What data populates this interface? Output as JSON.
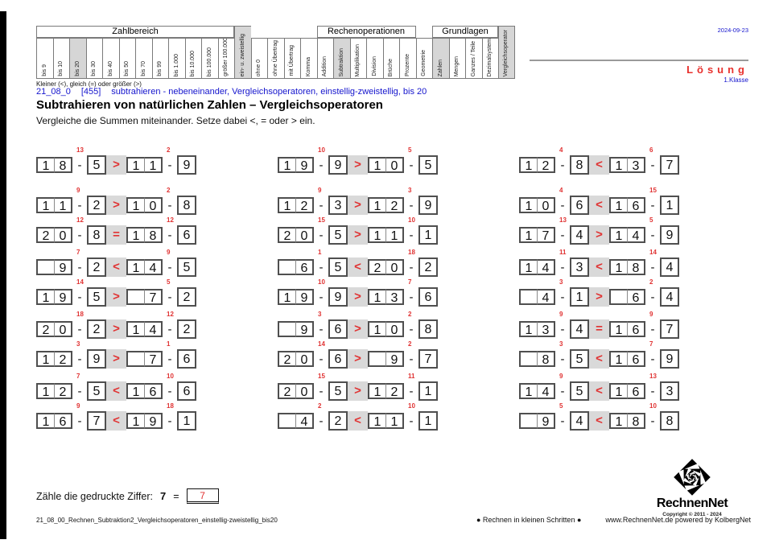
{
  "meta": {
    "date": "2024-09-23",
    "solution": "Lösung",
    "grade": "1.Klasse"
  },
  "legend": "Kleiner (<), gleich (=) oder größer (>)",
  "header_table": {
    "groups": [
      {
        "label": "Zahlbereich",
        "start": 1,
        "span": 12
      },
      {
        "label": "Rechenoperationen",
        "start": 18,
        "span": 6
      },
      {
        "label": "Grundlagen",
        "start": 25,
        "span": 4
      }
    ],
    "columns": [
      {
        "label": "bis 9"
      },
      {
        "label": "bis 10"
      },
      {
        "label": "bis 20",
        "hl": true
      },
      {
        "label": "bis 30"
      },
      {
        "label": "bis 40"
      },
      {
        "label": "bis 50"
      },
      {
        "label": "bis 70"
      },
      {
        "label": "bis 99"
      },
      {
        "label": "bis 1.000"
      },
      {
        "label": "bis 10.000"
      },
      {
        "label": "bis 100.000"
      },
      {
        "label": "größer 100.000"
      },
      {
        "label": "ein- u. zweistellig",
        "hl": true,
        "tall": true
      },
      {
        "label": "ohne 0"
      },
      {
        "label": "ohne Übertrag"
      },
      {
        "label": "mit Übertrag"
      },
      {
        "label": "Komma"
      },
      {
        "label": "Addition"
      },
      {
        "label": "Subtraktion",
        "hl": true
      },
      {
        "label": "Multiplikation"
      },
      {
        "label": "Division"
      },
      {
        "label": "Brüche"
      },
      {
        "label": "Prozente"
      },
      {
        "label": "Geometrie"
      },
      {
        "label": "Zahlen",
        "hl": true
      },
      {
        "label": "Mengen"
      },
      {
        "label": "Ganzes / Teile"
      },
      {
        "label": "Dezimalsystem"
      },
      {
        "label": "Vergleichsoperator",
        "hl": true,
        "tall": true
      }
    ]
  },
  "title_block": {
    "code": "21_08_0",
    "number": "[455]",
    "subtitle": "subtrahieren - nebeneinander, Vergleichsoperatoren, einstellig-zweistellig, bis 20",
    "title": "Subtrahieren von natürlichen Zahlen – Vergleichsoperatoren",
    "instruction": "Vergleiche die Summen miteinander. Setze dabei <, = oder > ein."
  },
  "problems": {
    "minus": "-",
    "rows": [
      {
        "group": 1,
        "cells": [
          {
            "a": "18",
            "b": "5",
            "op": ">",
            "c": "11",
            "d": "9",
            "ra": "13",
            "rc": "2"
          },
          {
            "a": "19",
            "b": "9",
            "op": ">",
            "c": "10",
            "d": "5",
            "ra": "10",
            "rc": "5"
          },
          {
            "a": "12",
            "b": "8",
            "op": "<",
            "c": "13",
            "d": "7",
            "ra": "4",
            "rc": "6"
          }
        ]
      },
      {
        "group": 2,
        "cells": [
          {
            "a": "11",
            "b": "2",
            "op": ">",
            "c": "10",
            "d": "8",
            "ra": "9",
            "rc": "2"
          },
          {
            "a": "12",
            "b": "3",
            "op": ">",
            "c": "12",
            "d": "9",
            "ra": "9",
            "rc": "3"
          },
          {
            "a": "10",
            "b": "6",
            "op": "<",
            "c": "16",
            "d": "1",
            "ra": "4",
            "rc": "15"
          }
        ]
      },
      {
        "group": 2,
        "cells": [
          {
            "a": "20",
            "b": "8",
            "op": "=",
            "c": "18",
            "d": "6",
            "ra": "12",
            "rc": "12"
          },
          {
            "a": "20",
            "b": "5",
            "op": ">",
            "c": "11",
            "d": "1",
            "ra": "15",
            "rc": "10"
          },
          {
            "a": "17",
            "b": "4",
            "op": ">",
            "c": "14",
            "d": "9",
            "ra": "13",
            "rc": "5"
          }
        ]
      },
      {
        "group": 3,
        "cells": [
          {
            "a": "9",
            "b": "2",
            "op": "<",
            "c": "14",
            "d": "5",
            "ra": "7",
            "rc": "9"
          },
          {
            "a": "6",
            "b": "5",
            "op": "<",
            "c": "20",
            "d": "2",
            "ra": "1",
            "rc": "18"
          },
          {
            "a": "14",
            "b": "3",
            "op": "<",
            "c": "18",
            "d": "4",
            "ra": "11",
            "rc": "14"
          }
        ]
      },
      {
        "group": 3,
        "cells": [
          {
            "a": "19",
            "b": "5",
            "op": ">",
            "c": "7",
            "d": "2",
            "ra": "14",
            "rc": "5"
          },
          {
            "a": "19",
            "b": "9",
            "op": ">",
            "c": "13",
            "d": "6",
            "ra": "10",
            "rc": "7"
          },
          {
            "a": "4",
            "b": "1",
            "op": ">",
            "c": "6",
            "d": "4",
            "ra": "3",
            "rc": "2"
          }
        ]
      },
      {
        "group": 4,
        "cells": [
          {
            "a": "20",
            "b": "2",
            "op": ">",
            "c": "14",
            "d": "2",
            "ra": "18",
            "rc": "12"
          },
          {
            "a": "9",
            "b": "6",
            "op": ">",
            "c": "10",
            "d": "8",
            "ra": "3",
            "rc": "2"
          },
          {
            "a": "13",
            "b": "4",
            "op": "=",
            "c": "16",
            "d": "7",
            "ra": "9",
            "rc": "9"
          }
        ]
      },
      {
        "group": 4,
        "cells": [
          {
            "a": "12",
            "b": "9",
            "op": ">",
            "c": "7",
            "d": "6",
            "ra": "3",
            "rc": "1"
          },
          {
            "a": "20",
            "b": "6",
            "op": ">",
            "c": "9",
            "d": "7",
            "ra": "14",
            "rc": "2"
          },
          {
            "a": "8",
            "b": "5",
            "op": "<",
            "c": "16",
            "d": "9",
            "ra": "3",
            "rc": "7"
          }
        ]
      },
      {
        "group": 5,
        "cells": [
          {
            "a": "12",
            "b": "5",
            "op": "<",
            "c": "16",
            "d": "6",
            "ra": "7",
            "rc": "10"
          },
          {
            "a": "20",
            "b": "5",
            "op": ">",
            "c": "12",
            "d": "1",
            "ra": "15",
            "rc": "11"
          },
          {
            "a": "14",
            "b": "5",
            "op": "<",
            "c": "16",
            "d": "3",
            "ra": "9",
            "rc": "13"
          }
        ]
      },
      {
        "group": 5,
        "cells": [
          {
            "a": "16",
            "b": "7",
            "op": "<",
            "c": "19",
            "d": "1",
            "ra": "9",
            "rc": "18"
          },
          {
            "a": "4",
            "b": "2",
            "op": "<",
            "c": "11",
            "d": "1",
            "ra": "2",
            "rc": "10"
          },
          {
            "a": "9",
            "b": "4",
            "op": "<",
            "c": "18",
            "d": "8",
            "ra": "5",
            "rc": "10"
          }
        ]
      }
    ]
  },
  "count_task": {
    "label": "Zähle die gedruckte Ziffer:",
    "digit": "7",
    "equals": "=",
    "answer": "7"
  },
  "footer": {
    "filename": "21_08_00_Rechnen_Subtraktion2_Vergleichsoperatoren_einstellig-zweistellig_bis20",
    "slogan": "● Rechnen in kleinen Schritten ●",
    "site": "www.RechnenNet.de powered by KolbergNet"
  },
  "logo": {
    "name": "RechnenNet",
    "copyright": "Copyright © 2011 - 2024"
  },
  "colors": {
    "accent_blue": "#1414cd",
    "accent_red": "#e03232",
    "highlight_gray": "#d6d6d6"
  }
}
